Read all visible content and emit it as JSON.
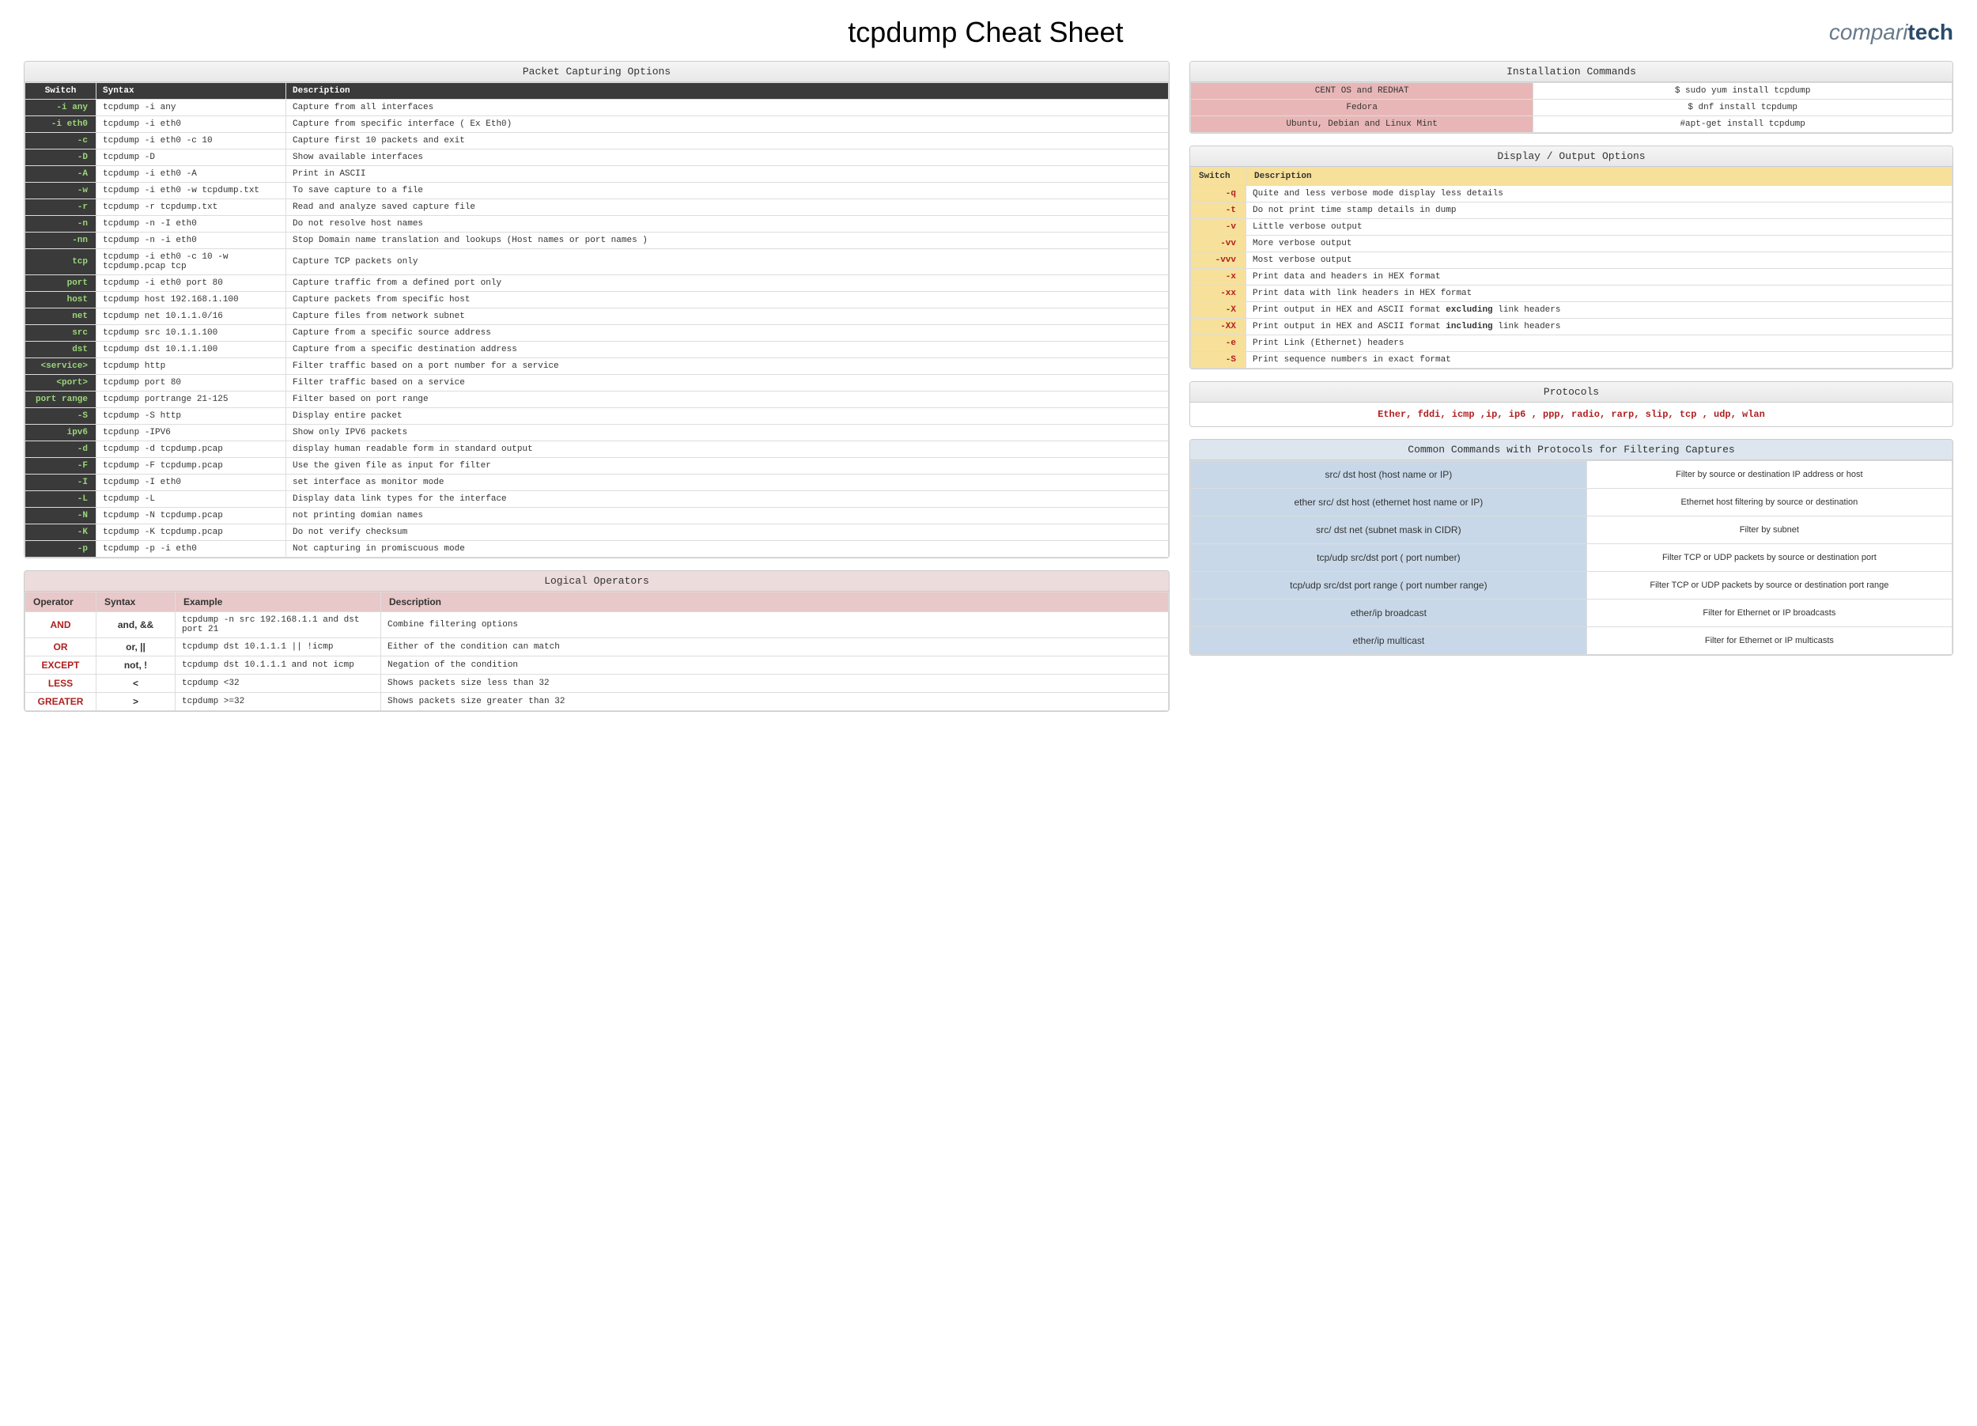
{
  "title": "tcpdump Cheat Sheet",
  "logo": {
    "part1": "compari",
    "part2": "tech"
  },
  "packetCapturing": {
    "title": "Packet Capturing Options",
    "headers": {
      "switch": "Switch",
      "syntax": "Syntax",
      "description": "Description"
    },
    "rows": [
      {
        "switch": "-i any",
        "syntax": "tcpdump -i any",
        "desc": "Capture from all interfaces"
      },
      {
        "switch": "-i eth0",
        "syntax": "tcpdump -i  eth0",
        "desc": "Capture from specific interface ( Ex Eth0)"
      },
      {
        "switch": "-c",
        "syntax": "tcpdump -i eth0 -c 10",
        "desc": "Capture first 10 packets  and exit"
      },
      {
        "switch": "-D",
        "syntax": "tcpdump -D",
        "desc": "Show available interfaces"
      },
      {
        "switch": "-A",
        "syntax": "tcpdump -i eth0 -A",
        "desc": "Print in ASCII"
      },
      {
        "switch": "-w",
        "syntax": "tcpdump -i eth0 -w tcpdump.txt",
        "desc": "To save capture to a file"
      },
      {
        "switch": "-r",
        "syntax": "tcpdump -r tcpdump.txt",
        "desc": "Read and analyze saved  capture file"
      },
      {
        "switch": "-n",
        "syntax": "tcpdump -n -I eth0",
        "desc": "Do not resolve host names"
      },
      {
        "switch": "-nn",
        "syntax": "tcpdump -n -i eth0",
        "desc": "Stop Domain name translation  and lookups (Host names or port names )"
      },
      {
        "switch": "tcp",
        "syntax": "tcpdump -i eth0 -c 10 -w tcpdump.pcap tcp",
        "desc": "Capture TCP packets only"
      },
      {
        "switch": "port",
        "syntax": "tcpdump -i eth0 port 80",
        "desc": "Capture traffic from a defined port only"
      },
      {
        "switch": "host",
        "syntax": "tcpdump host 192.168.1.100",
        "desc": "Capture packets from specific host"
      },
      {
        "switch": "net",
        "syntax": "tcpdump net 10.1.1.0/16",
        "desc": "Capture files from network subnet"
      },
      {
        "switch": "src",
        "syntax": "tcpdump src 10.1.1.100",
        "desc": "Capture from a specific source address"
      },
      {
        "switch": "dst",
        "syntax": "tcpdump dst 10.1.1.100",
        "desc": "Capture from a specific destination address"
      },
      {
        "switch": "<service>",
        "syntax": "tcpdump http",
        "desc": "Filter traffic based on a port number for a  service"
      },
      {
        "switch": "<port>",
        "syntax": "tcpdump port 80",
        "desc": "Filter traffic based on a service"
      },
      {
        "switch": "port range",
        "syntax": "tcpdump portrange 21-125",
        "desc": "Filter based on port range"
      },
      {
        "switch": "-S",
        "syntax": "tcpdump -S http",
        "desc": "Display entire packet"
      },
      {
        "switch": "ipv6",
        "syntax": "tcpdunp -IPV6",
        "desc": "Show only IPV6 packets"
      },
      {
        "switch": "-d",
        "syntax": "tcpdump -d tcpdump.pcap",
        "desc": "display human readable form in standard  output"
      },
      {
        "switch": "-F",
        "syntax": "tcpdump -F tcpdump.pcap",
        "desc": "Use the given file as input for filter"
      },
      {
        "switch": "-I",
        "syntax": "tcpdump -I eth0",
        "desc": "set interface as monitor mode"
      },
      {
        "switch": "-L",
        "syntax": "tcpdump -L",
        "desc": "Display data link types for the interface"
      },
      {
        "switch": "-N",
        "syntax": "tcpdump -N tcpdump.pcap",
        "desc": "not printing domian names"
      },
      {
        "switch": "-K",
        "syntax": "tcpdump -K tcpdump.pcap",
        "desc": "Do not verify checksum"
      },
      {
        "switch": "-p",
        "syntax": "tcpdump -p -i eth0",
        "desc": "Not capturing in promiscuous mode"
      }
    ]
  },
  "logicalOperators": {
    "title": "Logical Operators",
    "headers": {
      "operator": "Operator",
      "syntax": "Syntax",
      "example": "Example",
      "description": "Description"
    },
    "rows": [
      {
        "op": "AND",
        "syn": "and, &&",
        "ex": "tcpdump -n src 192.168.1.1 and dst port 21",
        "desc": "Combine filtering options"
      },
      {
        "op": "OR",
        "syn": "or, ||",
        "ex": "tcpdump dst 10.1.1.1 || !icmp",
        "desc": "Either of the condition can match"
      },
      {
        "op": "EXCEPT",
        "syn": "not, !",
        "ex": "tcpdump dst 10.1.1.1 and not icmp",
        "desc": "Negation of the condition"
      },
      {
        "op": "LESS",
        "syn": "<",
        "ex": "tcpdump <32",
        "desc": "Shows packets size less than 32"
      },
      {
        "op": "GREATER",
        "syn": ">",
        "ex": "tcpdump >=32",
        "desc": "Shows packets size greater than 32"
      }
    ]
  },
  "install": {
    "title": "Installation Commands",
    "rows": [
      {
        "os": "CENT OS and REDHAT",
        "cmd": "$ sudo yum install tcpdump"
      },
      {
        "os": "Fedora",
        "cmd": "$ dnf install tcpdump"
      },
      {
        "os": "Ubuntu, Debian and Linux Mint",
        "cmd": "#apt-get install tcpdump"
      }
    ]
  },
  "displayOutput": {
    "title": "Display / Output Options",
    "headers": {
      "switch": "Switch",
      "description": "Description"
    },
    "rows": [
      {
        "switch": "-q",
        "desc": "Quite and less verbose mode  display less details"
      },
      {
        "switch": "-t",
        "desc": "Do not print time stamp details in dump"
      },
      {
        "switch": "-v",
        "desc": "Little verbose output"
      },
      {
        "switch": "-vv",
        "desc": "More verbose output"
      },
      {
        "switch": "-vvv",
        "desc": "Most verbose output"
      },
      {
        "switch": "-x",
        "desc": "Print data and headers in HEX format"
      },
      {
        "switch": "-xx",
        "desc": "Print data  with link headers in HEX format"
      },
      {
        "switch": "-X",
        "desc": "Print output in HEX and ASCII format excluding link headers"
      },
      {
        "switch": "-XX",
        "desc": "Print output in HEX and ASCII format including link headers"
      },
      {
        "switch": "-e",
        "desc": "Print Link (Ethernet) headers"
      },
      {
        "switch": "-S",
        "desc": "Print sequence numbers in exact format"
      }
    ]
  },
  "protocols": {
    "title": "Protocols",
    "body": "Ether, fddi, icmp ,ip, ip6 , ppp, radio, rarp, slip, tcp , udp, wlan"
  },
  "commonCommands": {
    "title": "Common Commands with Protocols for Filtering Captures",
    "rows": [
      {
        "cmd": "src/ dst   host (host name or IP)",
        "desc": "Filter by source or destination IP address or host"
      },
      {
        "cmd": "ether src/ dst host (ethernet host name or IP)",
        "desc": "Ethernet host filtering by source or destination"
      },
      {
        "cmd": "src/ dst   net  (subnet mask in CIDR)",
        "desc": "Filter by subnet"
      },
      {
        "cmd": "tcp/udp src/dst port ( port number)",
        "desc": "Filter TCP or UDP packets by source or destination port"
      },
      {
        "cmd": "tcp/udp src/dst port range ( port number range)",
        "desc": "Filter TCP or UDP packets by source or destination port  range"
      },
      {
        "cmd": "ether/ip broadcast",
        "desc": "Filter for Ethernet or IP broadcasts"
      },
      {
        "cmd": "ether/ip multicast",
        "desc": "Filter for Ethernet or IP multicasts"
      }
    ]
  }
}
